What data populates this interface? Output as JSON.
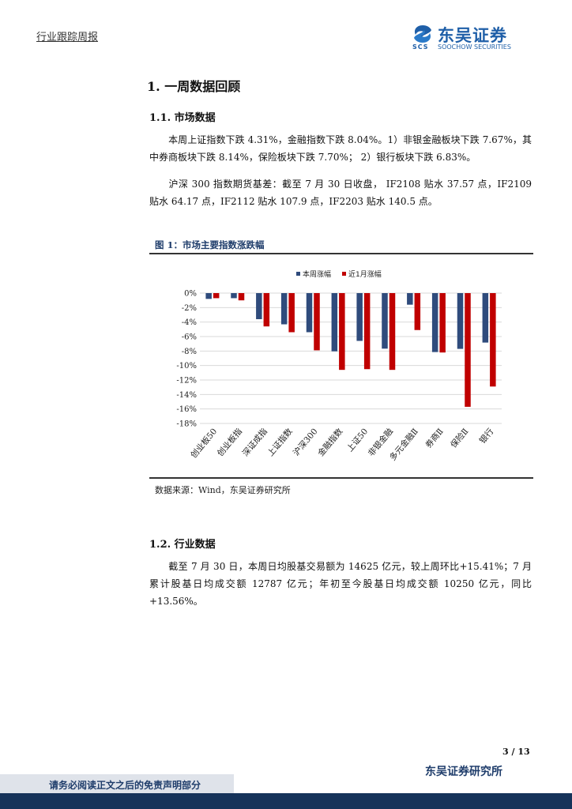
{
  "header": {
    "report_type": "行业跟踪周报",
    "logo_cn": "东吴证券",
    "logo_abbr": "SCS",
    "logo_en": "SOOCHOW SECURITIES"
  },
  "section1": {
    "title": "1.  一周数据回顾",
    "sub1_title": "1.1.  市场数据",
    "para1": "本周上证指数下跌 4.31%，金融指数下跌 8.04%。1）非银金融板块下跌 7.67%，其中券商板块下跌 8.14%，保险板块下跌 7.70%； 2）银行板块下跌 6.83%。",
    "para2": "沪深 300 指数期货基差：截至 7 月 30 日收盘， IF2108 贴水 37.57 点，IF2109 贴水 64.17 点，IF2112 贴水 107.9 点，IF2203 贴水 140.5 点。",
    "sub2_title": "1.2.  行业数据",
    "para3": "截至 7 月 30 日，本周日均股基交易额为 14625 亿元，较上周环比+15.41%；7 月累计股基日均成交额 12787 亿元；年初至今股基日均成交额 10250 亿元，同比+13.56%。"
  },
  "figure": {
    "title": "图 1：市场主要指数涨跌幅",
    "source": "数据来源：Wind，东吴证券研究所"
  },
  "chart_data": {
    "type": "bar",
    "categories": [
      "创业板50",
      "创业板指",
      "深证成指",
      "上证指数",
      "沪深300",
      "金融指数",
      "上证50",
      "非银金融",
      "多元金融Ⅱ",
      "券商Ⅱ",
      "保险Ⅱ",
      "银行"
    ],
    "series": [
      {
        "name": "本周涨幅",
        "color": "#2f4b7c",
        "values": [
          -0.8,
          -0.7,
          -3.6,
          -4.31,
          -5.4,
          -8.04,
          -6.6,
          -7.67,
          -1.6,
          -8.14,
          -7.7,
          -6.83
        ]
      },
      {
        "name": "近1月涨幅",
        "color": "#c00000",
        "values": [
          -0.7,
          -1.0,
          -4.6,
          -5.4,
          -7.9,
          -10.6,
          -10.5,
          -10.6,
          -5.1,
          -8.2,
          -15.7,
          -12.9
        ]
      }
    ],
    "ylim": [
      -18,
      0
    ],
    "yticks": [
      "0%",
      "-2%",
      "-4%",
      "-6%",
      "-8%",
      "-10%",
      "-12%",
      "-14%",
      "-16%",
      "-18%"
    ],
    "grid": true,
    "legend": "top-center"
  },
  "footer": {
    "page": "3 / 13",
    "institute": "东吴证券研究所",
    "disclaimer": "请务必阅读正文之后的免责声明部分"
  }
}
